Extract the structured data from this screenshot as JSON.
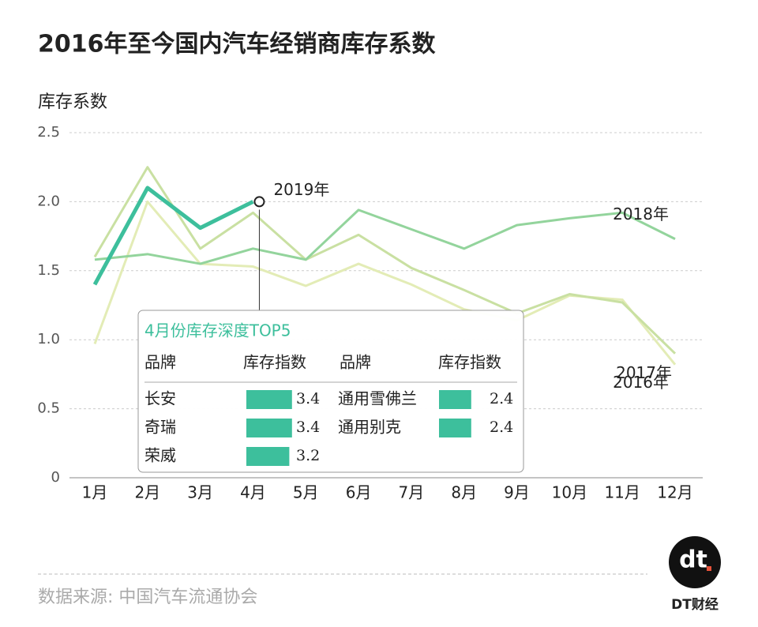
{
  "chart_data": {
    "type": "line",
    "title": "2016年至今国内汽车经销商库存系数",
    "y_label": "库存系数",
    "categories": [
      "1月",
      "2月",
      "3月",
      "4月",
      "5月",
      "6月",
      "7月",
      "8月",
      "9月",
      "10月",
      "11月",
      "12月"
    ],
    "series": [
      {
        "name": "2016年",
        "color": "#e3ecb6",
        "values": [
          0.97,
          2.0,
          1.55,
          1.53,
          1.39,
          1.55,
          1.4,
          1.22,
          1.14,
          1.32,
          1.29,
          0.82
        ]
      },
      {
        "name": "2017年",
        "color": "#c9e0a2",
        "values": [
          1.6,
          2.25,
          1.66,
          1.92,
          1.58,
          1.76,
          1.52,
          1.36,
          1.19,
          1.33,
          1.27,
          0.9
        ]
      },
      {
        "name": "2018年",
        "color": "#93d49c",
        "values": [
          1.58,
          1.62,
          1.55,
          1.66,
          1.58,
          1.94,
          1.8,
          1.66,
          1.83,
          1.88,
          1.92,
          1.73
        ]
      },
      {
        "name": "2019年",
        "color": "#3dbf9c",
        "values": [
          1.4,
          2.1,
          1.81,
          2.0,
          null,
          null,
          null,
          null,
          null,
          null,
          null,
          null
        ]
      }
    ],
    "ylim": [
      0,
      2.5
    ],
    "yticks": [
      0,
      0.5,
      {
        "value": 1,
        "label": "1.0"
      },
      1.5,
      {
        "value": 2,
        "label": "2.0"
      },
      2.5
    ],
    "grid": true
  },
  "inset": {
    "title": "4月份库存深度TOP5",
    "color": "#3dbf9c",
    "headers": [
      "品牌",
      "库存指数",
      "品牌",
      "库存指数"
    ],
    "left": [
      {
        "brand": "长安",
        "value": 3.4
      },
      {
        "brand": "奇瑞",
        "value": 3.4
      },
      {
        "brand": "荣威",
        "value": 3.2
      }
    ],
    "right": [
      {
        "brand": "通用雪佛兰",
        "value": 2.4
      },
      {
        "brand": "通用别克",
        "value": 2.4
      }
    ]
  },
  "source": "数据来源: 中国汽车流通协会",
  "logo": {
    "mark": "dt",
    "name": "DT财经"
  }
}
